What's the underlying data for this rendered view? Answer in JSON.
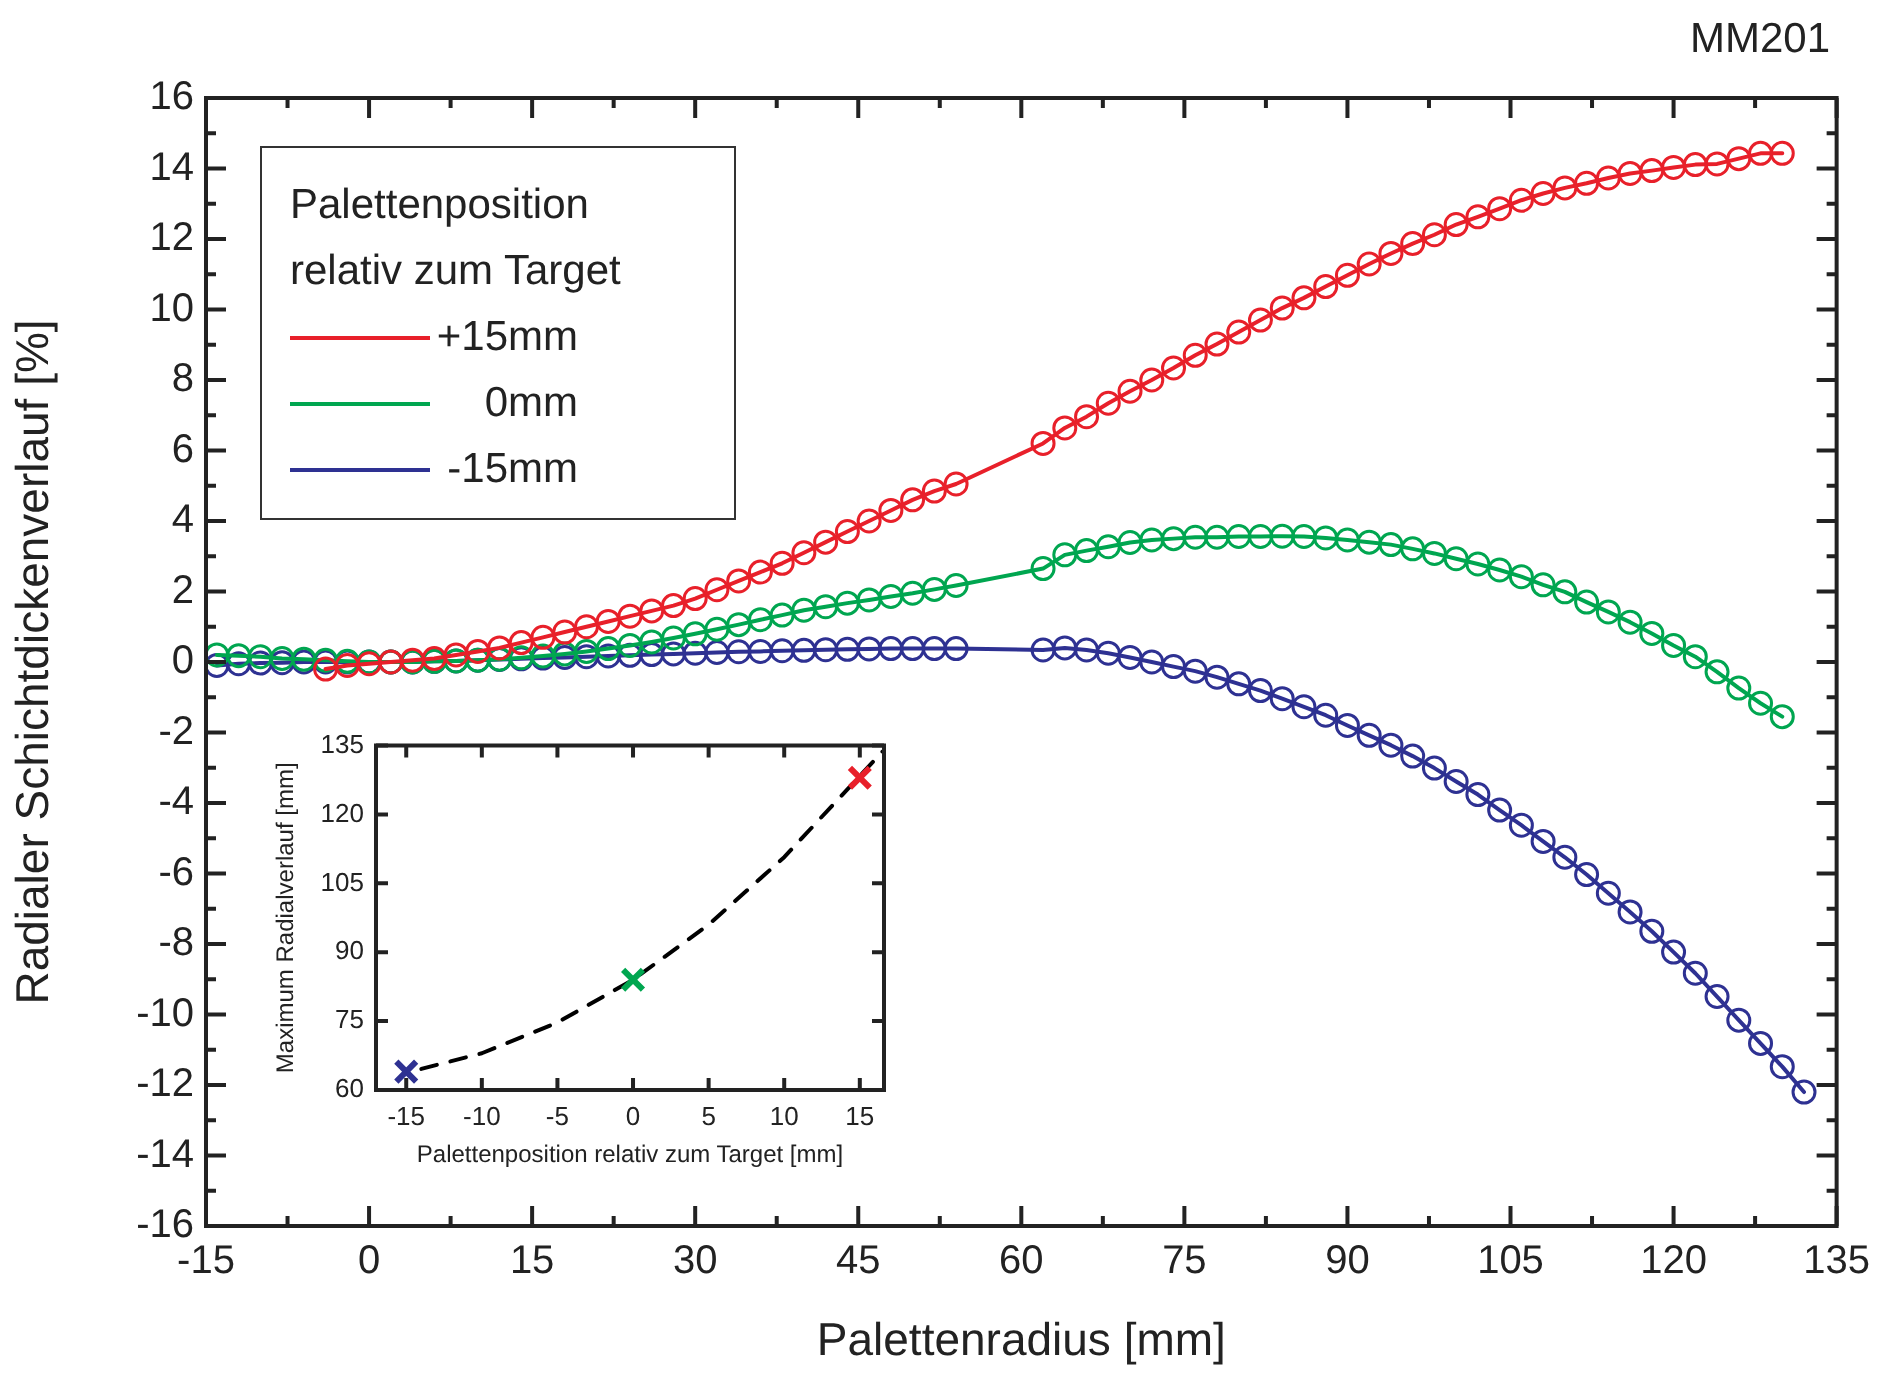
{
  "chart_data": [
    {
      "type": "line",
      "xlabel": "Palettenradius [mm]",
      "ylabel": "Radialer Schichtdickenverlauf [%]",
      "legend_title": "Palettenposition relativ zum Target",
      "annotations": [
        "MM201"
      ],
      "legend": "top left",
      "marker": "circle",
      "xlim": [
        -15,
        135
      ],
      "ylim": [
        -16,
        16
      ],
      "xticks": [
        -15,
        {
          "value": -7.5,
          "label": null
        },
        0,
        {
          "value": 7.5,
          "label": null
        },
        15,
        {
          "value": 22.5,
          "label": null
        },
        30,
        {
          "value": 37.5,
          "label": null
        },
        45,
        {
          "value": 52.5,
          "label": null
        },
        60,
        {
          "value": 67.5,
          "label": null
        },
        75,
        {
          "value": 82.5,
          "label": null
        },
        90,
        {
          "value": 97.5,
          "label": null
        },
        105,
        {
          "value": 112.5,
          "label": null
        },
        120,
        {
          "value": 127.5,
          "label": null
        },
        135
      ],
      "yticks": [
        -16,
        {
          "value": -15,
          "label": null
        },
        -14,
        {
          "value": -13,
          "label": null
        },
        -12,
        {
          "value": -11,
          "label": null
        },
        -10,
        {
          "value": -9,
          "label": null
        },
        -8,
        {
          "value": -7,
          "label": null
        },
        -6,
        {
          "value": -5,
          "label": null
        },
        -4,
        {
          "value": -3,
          "label": null
        },
        -2,
        {
          "value": -1,
          "label": null
        },
        0,
        {
          "value": 1,
          "label": null
        },
        2,
        {
          "value": 3,
          "label": null
        },
        4,
        {
          "value": 5,
          "label": null
        },
        6,
        {
          "value": 7,
          "label": null
        },
        8,
        {
          "value": 9,
          "label": null
        },
        10,
        {
          "value": 11,
          "label": null
        },
        12,
        {
          "value": 13,
          "label": null
        },
        14,
        {
          "value": 15,
          "label": null
        },
        16
      ],
      "series": [
        {
          "name": "+15mm",
          "color": "#e8202a",
          "x": [
            -4,
            -2,
            0,
            2,
            4,
            6,
            8,
            10,
            12,
            14,
            16,
            18,
            20,
            22,
            24,
            26,
            28,
            30,
            32,
            34,
            36,
            38,
            40,
            42,
            44,
            46,
            48,
            50,
            52,
            54,
            62,
            64,
            66,
            68,
            70,
            72,
            74,
            76,
            78,
            80,
            82,
            84,
            86,
            88,
            90,
            92,
            94,
            96,
            98,
            100,
            102,
            104,
            106,
            108,
            110,
            112,
            114,
            116,
            118,
            120,
            122,
            124,
            126,
            128,
            130
          ],
          "values": [
            -0.2,
            -0.1,
            -0.05,
            0,
            0.05,
            0.1,
            0.2,
            0.3,
            0.4,
            0.55,
            0.7,
            0.85,
            1.0,
            1.15,
            1.3,
            1.45,
            1.6,
            1.8,
            2.05,
            2.3,
            2.55,
            2.8,
            3.1,
            3.4,
            3.7,
            4.0,
            4.3,
            4.6,
            4.85,
            5.05,
            6.2,
            6.64,
            6.96,
            7.34,
            7.68,
            8.0,
            8.34,
            8.7,
            9.02,
            9.36,
            9.7,
            10.04,
            10.33,
            10.65,
            10.97,
            11.29,
            11.59,
            11.87,
            12.12,
            12.41,
            12.63,
            12.86,
            13.1,
            13.29,
            13.45,
            13.58,
            13.73,
            13.86,
            13.94,
            14.03,
            14.11,
            14.13,
            14.28,
            14.43,
            14.43
          ]
        },
        {
          "name": "0mm",
          "color": "#00a650",
          "x": [
            -14,
            -12,
            -10,
            -8,
            -6,
            -4,
            -2,
            0,
            2,
            4,
            6,
            8,
            10,
            12,
            14,
            16,
            18,
            20,
            22,
            24,
            26,
            28,
            30,
            32,
            34,
            36,
            38,
            40,
            42,
            44,
            46,
            48,
            50,
            52,
            54,
            62,
            64,
            66,
            68,
            70,
            72,
            74,
            76,
            78,
            80,
            82,
            84,
            86,
            88,
            90,
            92,
            94,
            96,
            98,
            100,
            102,
            104,
            106,
            108,
            110,
            112,
            114,
            116,
            118,
            120,
            122,
            124,
            126,
            128,
            130
          ],
          "values": [
            0.2,
            0.18,
            0.15,
            0.1,
            0.08,
            0.05,
            0.02,
            0,
            0,
            0,
            0.02,
            0.03,
            0.05,
            0.08,
            0.12,
            0.17,
            0.23,
            0.3,
            0.38,
            0.47,
            0.57,
            0.68,
            0.8,
            0.93,
            1.06,
            1.2,
            1.33,
            1.47,
            1.57,
            1.67,
            1.76,
            1.86,
            1.95,
            2.06,
            2.17,
            2.65,
            3.04,
            3.16,
            3.27,
            3.39,
            3.46,
            3.5,
            3.54,
            3.54,
            3.56,
            3.56,
            3.57,
            3.56,
            3.52,
            3.46,
            3.4,
            3.33,
            3.21,
            3.08,
            2.93,
            2.78,
            2.61,
            2.42,
            2.19,
            1.99,
            1.7,
            1.42,
            1.13,
            0.81,
            0.47,
            0.15,
            -0.28,
            -0.74,
            -1.17,
            -1.55
          ]
        },
        {
          "name": "-15mm",
          "color": "#2e3192",
          "x": [
            -14,
            -12,
            -10,
            -8,
            -6,
            -4,
            -2,
            0,
            2,
            4,
            6,
            8,
            10,
            12,
            14,
            16,
            18,
            20,
            22,
            24,
            26,
            28,
            30,
            32,
            34,
            36,
            38,
            40,
            42,
            44,
            46,
            48,
            50,
            52,
            54,
            62,
            64,
            66,
            68,
            70,
            72,
            74,
            76,
            78,
            80,
            82,
            84,
            86,
            88,
            90,
            92,
            94,
            96,
            98,
            100,
            102,
            104,
            106,
            108,
            110,
            112,
            114,
            116,
            118,
            120,
            122,
            124,
            126,
            128,
            130,
            132
          ],
          "values": [
            -0.1,
            -0.05,
            -0.03,
            -0.02,
            0,
            0,
            0,
            0,
            0,
            0,
            0.02,
            0.03,
            0.05,
            0.07,
            0.09,
            0.11,
            0.13,
            0.15,
            0.17,
            0.19,
            0.21,
            0.23,
            0.25,
            0.27,
            0.29,
            0.3,
            0.32,
            0.33,
            0.35,
            0.36,
            0.37,
            0.38,
            0.38,
            0.38,
            0.38,
            0.34,
            0.4,
            0.34,
            0.25,
            0.13,
            0,
            -0.13,
            -0.26,
            -0.43,
            -0.62,
            -0.81,
            -1.04,
            -1.27,
            -1.51,
            -1.8,
            -2.08,
            -2.36,
            -2.67,
            -3.01,
            -3.39,
            -3.76,
            -4.2,
            -4.63,
            -5.09,
            -5.54,
            -6.03,
            -6.56,
            -7.09,
            -7.64,
            -8.23,
            -8.83,
            -9.49,
            -10.16,
            -10.82,
            -11.48,
            -12.2
          ]
        }
      ]
    },
    {
      "type": "scatter",
      "xlabel": "Palettenposition relativ zum Target [mm]",
      "ylabel": "Maximum Radialverlauf [mm]",
      "xlim": [
        -17,
        16.6
      ],
      "ylim": [
        60,
        135
      ],
      "xticks": [
        -15,
        -10,
        -5,
        0,
        5,
        10,
        15
      ],
      "yticks": [
        60,
        75,
        90,
        105,
        120,
        135
      ],
      "series": [
        {
          "type": "scatter",
          "marker": "cross",
          "x": [
            -15,
            0,
            15
          ],
          "values": [
            64,
            84,
            128
          ],
          "colors": [
            "#2e3192",
            "#00a650",
            "#e8202a"
          ]
        },
        {
          "type": "line",
          "marker": "none",
          "line_style": "dashed",
          "color": "#000000",
          "x": [
            -14,
            -10,
            -5,
            0,
            5,
            10,
            16.5
          ],
          "values": [
            64.6,
            68,
            74.7,
            84,
            96,
            110.7,
            133.7
          ]
        }
      ]
    }
  ]
}
